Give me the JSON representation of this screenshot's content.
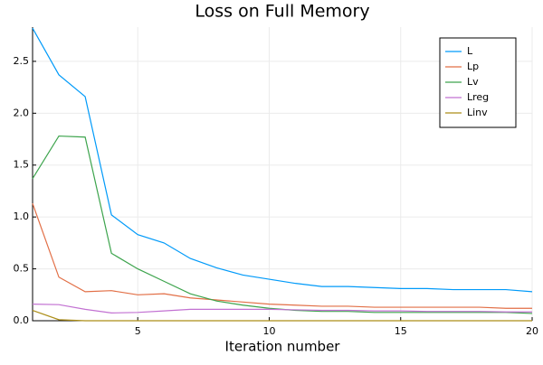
{
  "chart_data": {
    "type": "line",
    "title": "Loss on Full Memory",
    "x_label": "Iteration number",
    "x": [
      1,
      2,
      3,
      4,
      5,
      6,
      7,
      8,
      9,
      10,
      11,
      12,
      13,
      14,
      15,
      16,
      17,
      18,
      19,
      20
    ],
    "series": [
      {
        "name": "L",
        "color": "#009af9",
        "values": [
          2.82,
          2.37,
          2.16,
          1.02,
          0.83,
          0.75,
          0.6,
          0.51,
          0.44,
          0.4,
          0.36,
          0.33,
          0.33,
          0.32,
          0.31,
          0.31,
          0.3,
          0.3,
          0.3,
          0.28
        ]
      },
      {
        "name": "Lp",
        "color": "#e26f46",
        "values": [
          1.13,
          0.42,
          0.28,
          0.29,
          0.25,
          0.26,
          0.22,
          0.2,
          0.18,
          0.16,
          0.15,
          0.14,
          0.14,
          0.13,
          0.13,
          0.13,
          0.13,
          0.13,
          0.12,
          0.12
        ]
      },
      {
        "name": "Lv",
        "color": "#3da44d",
        "values": [
          1.37,
          1.78,
          1.77,
          0.65,
          0.5,
          0.38,
          0.26,
          0.19,
          0.15,
          0.12,
          0.1,
          0.09,
          0.09,
          0.08,
          0.08,
          0.08,
          0.08,
          0.08,
          0.08,
          0.07
        ]
      },
      {
        "name": "Lreg",
        "color": "#c271d2",
        "values": [
          0.16,
          0.155,
          0.11,
          0.075,
          0.08,
          0.095,
          0.11,
          0.11,
          0.11,
          0.11,
          0.105,
          0.1,
          0.1,
          0.095,
          0.095,
          0.09,
          0.09,
          0.09,
          0.085,
          0.085
        ]
      },
      {
        "name": "Linv",
        "color": "#ac8e18",
        "values": [
          0.1,
          0.01,
          0,
          0,
          0,
          0,
          0,
          0,
          0,
          0,
          0,
          0,
          0,
          0,
          0,
          0,
          0,
          0,
          0,
          0
        ]
      }
    ],
    "xlim": [
      1,
      20
    ],
    "xticks": [
      5,
      10,
      15,
      20
    ],
    "ylim": [
      0,
      2.83
    ],
    "yticks": [
      {
        "value": 0,
        "label": "0.0"
      },
      {
        "value": 0.5,
        "label": "0.5"
      },
      {
        "value": 1,
        "label": "1.0"
      },
      {
        "value": 1.5,
        "label": "1.5"
      },
      {
        "value": 2,
        "label": "2.0"
      },
      {
        "value": 2.5,
        "label": "2.5"
      }
    ],
    "grid": true,
    "legend": "top-right"
  }
}
